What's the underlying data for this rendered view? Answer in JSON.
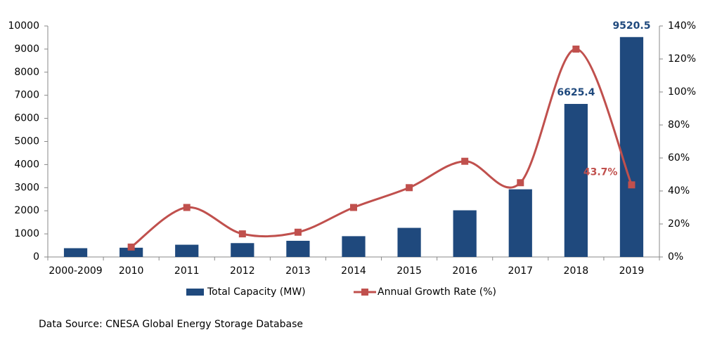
{
  "chart_data": {
    "type": "bar-line",
    "categories": [
      "2000-2009",
      "2010",
      "2011",
      "2012",
      "2013",
      "2014",
      "2015",
      "2016",
      "2017",
      "2018",
      "2019"
    ],
    "series": [
      {
        "name": "Total Capacity (MW)",
        "type": "bar",
        "color": "#1f497d",
        "values": [
          380,
          400,
          530,
          600,
          700,
          900,
          1260,
          2020,
          2930,
          6625.4,
          9520.5
        ],
        "value_labels": [
          null,
          null,
          null,
          null,
          null,
          null,
          null,
          null,
          null,
          "6625.4",
          "9520.5"
        ]
      },
      {
        "name": "Annual Growth Rate (%)",
        "type": "line",
        "axis": "y2",
        "color": "#c0504d",
        "values": [
          null,
          6,
          30,
          14,
          15,
          30,
          42,
          58,
          45,
          126,
          43.7
        ],
        "value_labels": [
          null,
          null,
          null,
          null,
          null,
          null,
          null,
          null,
          null,
          null,
          "43.7%"
        ]
      }
    ],
    "ylim": [
      0,
      10000
    ],
    "yticks": [
      0,
      1000,
      2000,
      3000,
      4000,
      5000,
      6000,
      7000,
      8000,
      9000,
      10000
    ],
    "y2lim": [
      0,
      140
    ],
    "y2ticks": [
      {
        "value": 0,
        "label": "0%"
      },
      {
        "value": 20,
        "label": "20%"
      },
      {
        "value": 40,
        "label": "40%"
      },
      {
        "value": 60,
        "label": "60%"
      },
      {
        "value": 80,
        "label": "80%"
      },
      {
        "value": 100,
        "label": "100%"
      },
      {
        "value": 120,
        "label": "120%"
      },
      {
        "value": 140,
        "label": "140%"
      }
    ],
    "grid": false,
    "legend": "bottom",
    "source": "Data Source: CNESA Global Energy Storage Database"
  }
}
